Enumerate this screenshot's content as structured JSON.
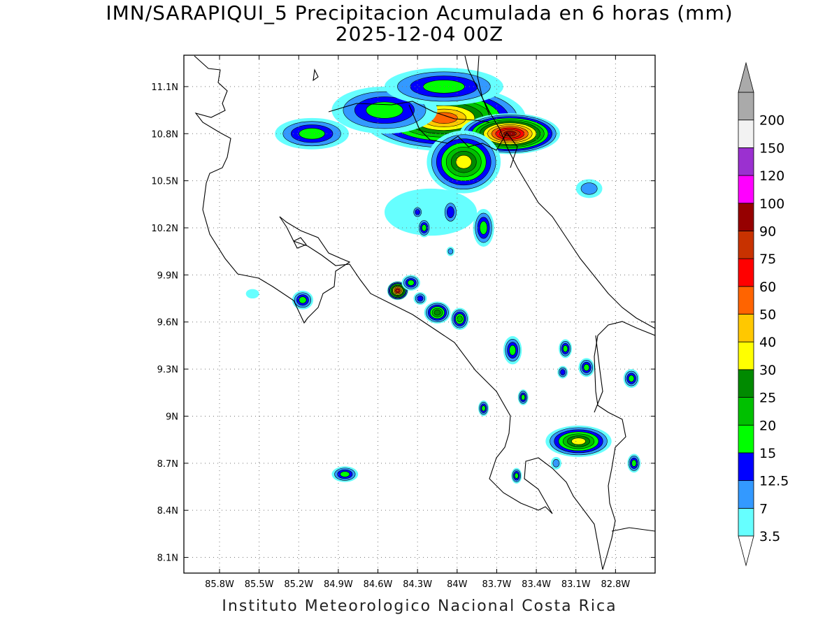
{
  "title": {
    "line1": "IMN/SARAPIQUI_5 Precipitacion Acumulada en 6 horas (mm)",
    "line2": "2025-12-04 00Z"
  },
  "footer": "Instituto Meteorologico Nacional Costa Rica",
  "map": {
    "lon_range": [
      -86.07,
      -82.5
    ],
    "lat_range": [
      8.0,
      11.3
    ],
    "lon_ticks": [
      {
        "value": -85.8,
        "label": "85.8W"
      },
      {
        "value": -85.5,
        "label": "85.5W"
      },
      {
        "value": -85.2,
        "label": "85.2W"
      },
      {
        "value": -84.9,
        "label": "84.9W"
      },
      {
        "value": -84.6,
        "label": "84.6W"
      },
      {
        "value": -84.3,
        "label": "84.3W"
      },
      {
        "value": -84.0,
        "label": "84W"
      },
      {
        "value": -83.7,
        "label": "83.7W"
      },
      {
        "value": -83.4,
        "label": "83.4W"
      },
      {
        "value": -83.1,
        "label": "83.1W"
      },
      {
        "value": -82.8,
        "label": "82.8W"
      }
    ],
    "lat_ticks": [
      {
        "value": 11.1,
        "label": "11.1N"
      },
      {
        "value": 10.8,
        "label": "10.8N"
      },
      {
        "value": 10.5,
        "label": "10.5N"
      },
      {
        "value": 10.2,
        "label": "10.2N"
      },
      {
        "value": 9.9,
        "label": "9.9N"
      },
      {
        "value": 9.6,
        "label": "9.6N"
      },
      {
        "value": 9.3,
        "label": "9.3N"
      },
      {
        "value": 9.0,
        "label": "9N"
      },
      {
        "value": 8.7,
        "label": "8.7N"
      },
      {
        "value": 8.4,
        "label": "8.4N"
      },
      {
        "value": 8.1,
        "label": "8.1N"
      }
    ],
    "grid": "dotted"
  },
  "colorbar": {
    "levels": [
      {
        "label": "3.5",
        "color": "#66ffff"
      },
      {
        "label": "7",
        "color": "#3399ff"
      },
      {
        "label": "12.5",
        "color": "#0000ff"
      },
      {
        "label": "15",
        "color": "#00ff00"
      },
      {
        "label": "20",
        "color": "#00c000"
      },
      {
        "label": "25",
        "color": "#008a00"
      },
      {
        "label": "30",
        "color": "#ffff00"
      },
      {
        "label": "40",
        "color": "#ffc800"
      },
      {
        "label": "50",
        "color": "#ff6400"
      },
      {
        "label": "60",
        "color": "#ff0000"
      },
      {
        "label": "75",
        "color": "#c83200"
      },
      {
        "label": "90",
        "color": "#960000"
      },
      {
        "label": "100",
        "color": "#ff00ff"
      },
      {
        "label": "120",
        "color": "#9b30d0"
      },
      {
        "label": "150",
        "color": "#f2f2f2"
      },
      {
        "label": "200",
        "color": "#aaaaaa"
      }
    ]
  },
  "precip_cells": [
    {
      "lon": -84.1,
      "lat": 10.9,
      "rx": 0.62,
      "ry": 0.21,
      "peak": 9
    },
    {
      "lon": -83.6,
      "lat": 10.8,
      "rx": 0.38,
      "ry": 0.13,
      "peak": 12
    },
    {
      "lon": -83.95,
      "lat": 10.62,
      "rx": 0.28,
      "ry": 0.2,
      "peak": 7
    },
    {
      "lon": -84.55,
      "lat": 10.95,
      "rx": 0.4,
      "ry": 0.15,
      "peak": 4
    },
    {
      "lon": -85.1,
      "lat": 10.8,
      "rx": 0.28,
      "ry": 0.1,
      "peak": 4
    },
    {
      "lon": -84.1,
      "lat": 11.1,
      "rx": 0.45,
      "ry": 0.12,
      "peak": 4
    },
    {
      "lon": -84.2,
      "lat": 10.3,
      "rx": 0.35,
      "ry": 0.15,
      "peak": 1
    },
    {
      "lon": -83.8,
      "lat": 10.2,
      "rx": 0.08,
      "ry": 0.12,
      "peak": 4
    },
    {
      "lon": -84.45,
      "lat": 9.8,
      "rx": 0.08,
      "ry": 0.06,
      "peak": 11
    },
    {
      "lon": -84.35,
      "lat": 9.85,
      "rx": 0.07,
      "ry": 0.05,
      "peak": 4
    },
    {
      "lon": -84.15,
      "lat": 9.66,
      "rx": 0.1,
      "ry": 0.07,
      "peak": 6
    },
    {
      "lon": -83.98,
      "lat": 9.62,
      "rx": 0.07,
      "ry": 0.07,
      "peak": 5
    },
    {
      "lon": -84.28,
      "lat": 9.75,
      "rx": 0.05,
      "ry": 0.04,
      "peak": 3
    },
    {
      "lon": -85.17,
      "lat": 9.74,
      "rx": 0.08,
      "ry": 0.06,
      "peak": 4
    },
    {
      "lon": -85.55,
      "lat": 9.78,
      "rx": 0.05,
      "ry": 0.03,
      "peak": 1
    },
    {
      "lon": -83.58,
      "lat": 9.42,
      "rx": 0.07,
      "ry": 0.09,
      "peak": 4
    },
    {
      "lon": -83.18,
      "lat": 9.43,
      "rx": 0.05,
      "ry": 0.06,
      "peak": 4
    },
    {
      "lon": -83.02,
      "lat": 9.31,
      "rx": 0.06,
      "ry": 0.06,
      "peak": 4
    },
    {
      "lon": -83.2,
      "lat": 9.28,
      "rx": 0.04,
      "ry": 0.04,
      "peak": 3
    },
    {
      "lon": -82.68,
      "lat": 9.24,
      "rx": 0.06,
      "ry": 0.06,
      "peak": 4
    },
    {
      "lon": -83.5,
      "lat": 9.12,
      "rx": 0.04,
      "ry": 0.05,
      "peak": 4
    },
    {
      "lon": -83.8,
      "lat": 9.05,
      "rx": 0.04,
      "ry": 0.05,
      "peak": 4
    },
    {
      "lon": -83.08,
      "lat": 8.84,
      "rx": 0.25,
      "ry": 0.1,
      "peak": 7
    },
    {
      "lon": -82.66,
      "lat": 8.7,
      "rx": 0.05,
      "ry": 0.06,
      "peak": 4
    },
    {
      "lon": -83.55,
      "lat": 8.62,
      "rx": 0.04,
      "ry": 0.05,
      "peak": 4
    },
    {
      "lon": -84.85,
      "lat": 8.63,
      "rx": 0.1,
      "ry": 0.05,
      "peak": 4
    },
    {
      "lon": -83.25,
      "lat": 8.7,
      "rx": 0.04,
      "ry": 0.04,
      "peak": 2
    },
    {
      "lon": -83.0,
      "lat": 10.45,
      "rx": 0.1,
      "ry": 0.06,
      "peak": 2
    },
    {
      "lon": -84.25,
      "lat": 10.2,
      "rx": 0.05,
      "ry": 0.06,
      "peak": 4
    },
    {
      "lon": -84.05,
      "lat": 10.3,
      "rx": 0.06,
      "ry": 0.08,
      "peak": 3
    },
    {
      "lon": -84.3,
      "lat": 10.3,
      "rx": 0.04,
      "ry": 0.04,
      "peak": 3
    },
    {
      "lon": -84.05,
      "lat": 10.05,
      "rx": 0.03,
      "ry": 0.03,
      "peak": 2
    }
  ]
}
